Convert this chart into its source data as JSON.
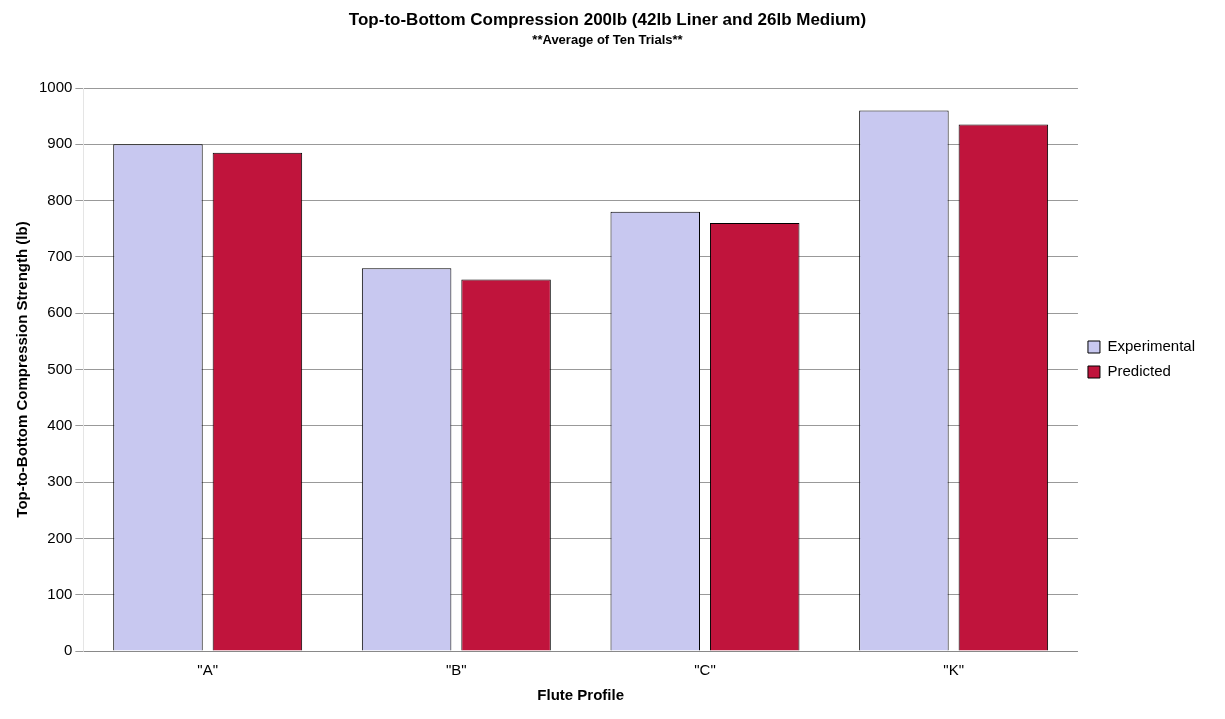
{
  "chart_data": {
    "type": "bar",
    "title": "Top-to-Bottom Compression 200lb (42lb Liner and 26lb Medium)",
    "subtitle": "**Average of Ten Trials**",
    "xlabel": "Flute Profile",
    "ylabel": "Top-to-Bottom Compression Strength (lb)",
    "categories": [
      "\"A\"",
      "\"B\"",
      "\"C\"",
      "\"K\""
    ],
    "series": [
      {
        "name": "Experimental",
        "color": "#c8c8f0",
        "values": [
          900,
          680,
          780,
          960
        ]
      },
      {
        "name": "Predicted",
        "color": "#c0143c",
        "values": [
          885,
          660,
          760,
          935
        ]
      }
    ],
    "ylim": [
      0,
      1000
    ],
    "yticks": [
      0,
      100,
      200,
      300,
      400,
      500,
      600,
      700,
      800,
      900,
      1000
    ],
    "grid": "y",
    "legend": "right"
  }
}
